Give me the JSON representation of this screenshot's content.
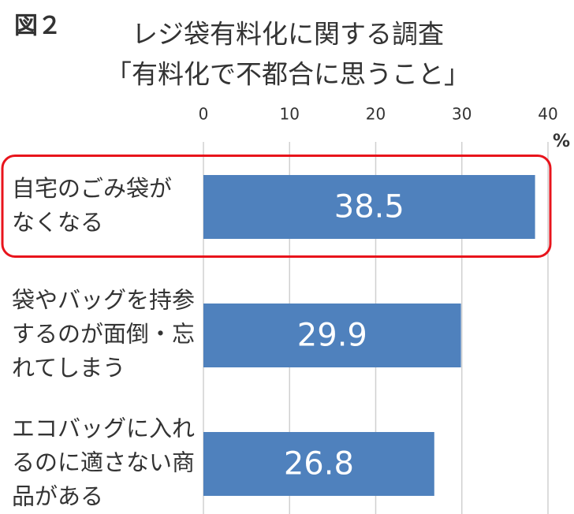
{
  "chart_data": {
    "type": "barh",
    "figure_label": "図２",
    "title": [
      "レジ袋有料化に関する調査",
      "「有料化で不都合に思うこと」"
    ],
    "unit": "%",
    "categories": [
      [
        "自宅のごみ袋が",
        "なくなる"
      ],
      [
        "袋やバッグを持参",
        "するのが面倒・忘",
        "れてしまう"
      ],
      [
        "エコバッグに入れ",
        "るのに適さない商",
        "品がある"
      ]
    ],
    "values": [
      38.5,
      29.9,
      26.8
    ],
    "color": "#4f81bd",
    "xlim": [
      0,
      40
    ],
    "xticks": [
      0,
      10,
      20,
      30,
      40
    ],
    "grid": true,
    "highlight": 0,
    "highlight_color": "#e8141c"
  }
}
